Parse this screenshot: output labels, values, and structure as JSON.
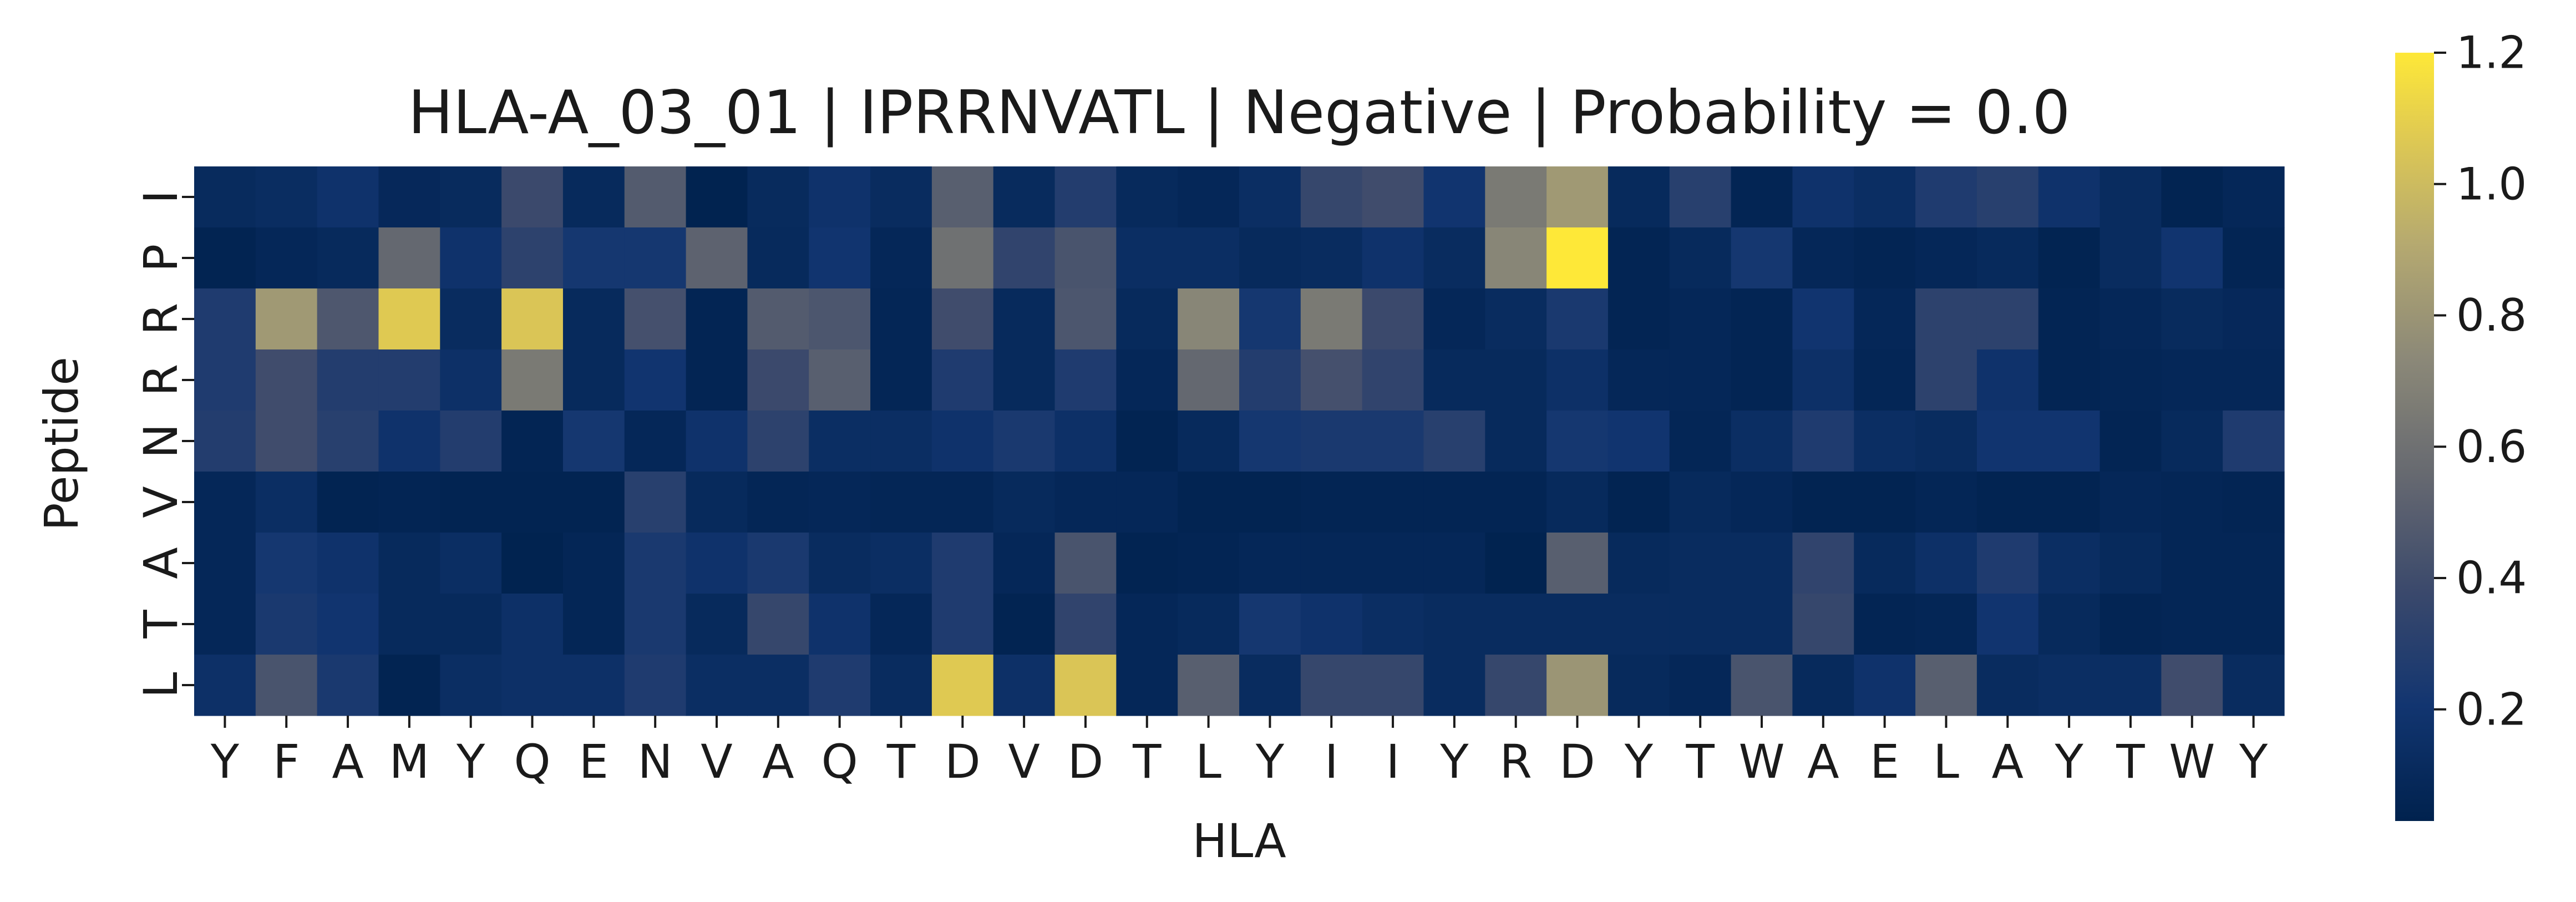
{
  "chart_data": {
    "type": "heatmap",
    "title": "HLA-A_03_01 | IPRRNVATL | Negative | Probability = 0.0",
    "xlabel": "HLA",
    "ylabel": "Peptide",
    "x_categories": [
      "Y",
      "F",
      "A",
      "M",
      "Y",
      "Q",
      "E",
      "N",
      "V",
      "A",
      "Q",
      "T",
      "D",
      "V",
      "D",
      "T",
      "L",
      "Y",
      "I",
      "I",
      "Y",
      "R",
      "D",
      "Y",
      "T",
      "W",
      "A",
      "E",
      "L",
      "A",
      "Y",
      "T",
      "W",
      "Y"
    ],
    "y_categories": [
      "I",
      "P",
      "R",
      "R",
      "N",
      "V",
      "A",
      "T",
      "L"
    ],
    "colormap": "cividis",
    "colorbar": {
      "min": 0.03,
      "max": 1.2,
      "ticks": [
        "0.2",
        "0.4",
        "0.6",
        "0.8",
        "1.0",
        "1.2"
      ],
      "tick_values": [
        0.2,
        0.4,
        0.6,
        0.8,
        1.0,
        1.2
      ]
    },
    "values": [
      [
        0.11,
        0.13,
        0.18,
        0.09,
        0.11,
        0.38,
        0.1,
        0.48,
        0.04,
        0.11,
        0.18,
        0.12,
        0.5,
        0.11,
        0.28,
        0.1,
        0.08,
        0.14,
        0.36,
        0.4,
        0.2,
        0.65,
        0.82,
        0.1,
        0.3,
        0.06,
        0.18,
        0.14,
        0.26,
        0.3,
        0.18,
        0.12,
        0.05,
        0.08
      ],
      [
        0.05,
        0.08,
        0.1,
        0.55,
        0.18,
        0.32,
        0.22,
        0.22,
        0.52,
        0.1,
        0.2,
        0.08,
        0.6,
        0.34,
        0.44,
        0.14,
        0.14,
        0.1,
        0.12,
        0.18,
        0.12,
        0.72,
        1.2,
        0.06,
        0.1,
        0.22,
        0.08,
        0.06,
        0.08,
        0.1,
        0.05,
        0.12,
        0.2,
        0.06
      ],
      [
        0.26,
        0.82,
        0.46,
        1.07,
        0.12,
        1.05,
        0.1,
        0.42,
        0.06,
        0.48,
        0.45,
        0.07,
        0.4,
        0.1,
        0.45,
        0.1,
        0.72,
        0.22,
        0.65,
        0.38,
        0.08,
        0.12,
        0.24,
        0.06,
        0.08,
        0.06,
        0.2,
        0.08,
        0.32,
        0.32,
        0.06,
        0.08,
        0.11,
        0.09
      ],
      [
        0.26,
        0.4,
        0.28,
        0.28,
        0.16,
        0.65,
        0.1,
        0.2,
        0.06,
        0.38,
        0.5,
        0.07,
        0.26,
        0.1,
        0.26,
        0.08,
        0.55,
        0.28,
        0.42,
        0.34,
        0.1,
        0.1,
        0.16,
        0.08,
        0.08,
        0.06,
        0.16,
        0.07,
        0.32,
        0.18,
        0.06,
        0.07,
        0.08,
        0.08
      ],
      [
        0.28,
        0.4,
        0.3,
        0.18,
        0.28,
        0.06,
        0.22,
        0.08,
        0.18,
        0.32,
        0.14,
        0.14,
        0.18,
        0.24,
        0.16,
        0.05,
        0.1,
        0.22,
        0.24,
        0.24,
        0.3,
        0.1,
        0.22,
        0.2,
        0.07,
        0.14,
        0.26,
        0.14,
        0.12,
        0.2,
        0.2,
        0.06,
        0.1,
        0.26
      ],
      [
        0.08,
        0.14,
        0.05,
        0.06,
        0.05,
        0.05,
        0.05,
        0.3,
        0.1,
        0.07,
        0.08,
        0.07,
        0.07,
        0.1,
        0.08,
        0.08,
        0.05,
        0.05,
        0.06,
        0.06,
        0.06,
        0.06,
        0.1,
        0.05,
        0.1,
        0.08,
        0.05,
        0.05,
        0.07,
        0.05,
        0.05,
        0.08,
        0.07,
        0.06
      ],
      [
        0.08,
        0.22,
        0.18,
        0.1,
        0.14,
        0.04,
        0.07,
        0.24,
        0.18,
        0.24,
        0.12,
        0.14,
        0.26,
        0.08,
        0.44,
        0.05,
        0.06,
        0.08,
        0.08,
        0.08,
        0.08,
        0.04,
        0.5,
        0.1,
        0.12,
        0.12,
        0.34,
        0.1,
        0.16,
        0.26,
        0.14,
        0.1,
        0.07,
        0.07
      ],
      [
        0.08,
        0.24,
        0.2,
        0.1,
        0.1,
        0.16,
        0.07,
        0.24,
        0.1,
        0.36,
        0.18,
        0.08,
        0.26,
        0.05,
        0.34,
        0.08,
        0.1,
        0.22,
        0.18,
        0.14,
        0.12,
        0.12,
        0.12,
        0.12,
        0.12,
        0.12,
        0.36,
        0.06,
        0.07,
        0.2,
        0.1,
        0.06,
        0.07,
        0.07
      ],
      [
        0.16,
        0.44,
        0.24,
        0.05,
        0.14,
        0.16,
        0.16,
        0.26,
        0.14,
        0.14,
        0.26,
        0.12,
        1.07,
        0.16,
        1.05,
        0.08,
        0.5,
        0.12,
        0.36,
        0.36,
        0.12,
        0.36,
        0.8,
        0.1,
        0.08,
        0.44,
        0.1,
        0.18,
        0.5,
        0.12,
        0.14,
        0.14,
        0.4,
        0.12
      ]
    ]
  }
}
